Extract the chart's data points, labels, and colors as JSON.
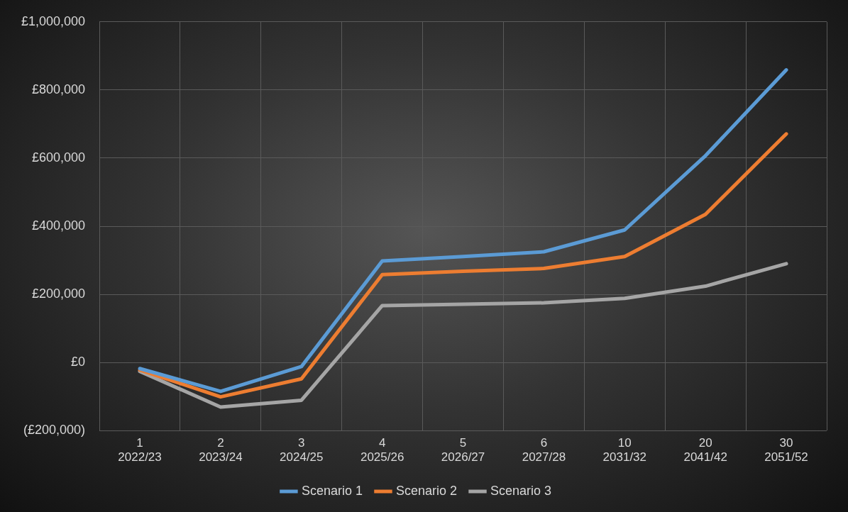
{
  "chart_data": {
    "type": "line",
    "categories": [
      "1\n2022/23",
      "2\n2023/24",
      "3\n2024/25",
      "4\n2025/26",
      "5\n2026/27",
      "6\n2027/28",
      "10\n2031/32",
      "20\n2041/42",
      "30\n2051/52"
    ],
    "series": [
      {
        "name": "Scenario 1",
        "color": "#5b9bd5",
        "values": [
          -18000,
          -85000,
          -12000,
          298000,
          311000,
          325000,
          389000,
          607000,
          859000
        ]
      },
      {
        "name": "Scenario 2",
        "color": "#ed7d31",
        "values": [
          -22000,
          -101000,
          -48000,
          258000,
          268000,
          276000,
          311000,
          435000,
          671000
        ]
      },
      {
        "name": "Scenario 3",
        "color": "#a5a5a5",
        "values": [
          -26000,
          -131000,
          -111000,
          167000,
          171000,
          175000,
          188000,
          224000,
          290000
        ]
      }
    ],
    "ylim": [
      -200000,
      1000000
    ],
    "yticks": [
      {
        "value": -200000,
        "label": "(£200,000)"
      },
      {
        "value": 0,
        "label": "£0"
      },
      {
        "value": 200000,
        "label": "£200,000"
      },
      {
        "value": 400000,
        "label": "£400,000"
      },
      {
        "value": 600000,
        "label": "£600,000"
      },
      {
        "value": 800000,
        "label": "£800,000"
      },
      {
        "value": 1000000,
        "label": "£1,000,000"
      }
    ],
    "grid": true,
    "legend": "bottom",
    "marker": "none",
    "line_style": "solid"
  }
}
